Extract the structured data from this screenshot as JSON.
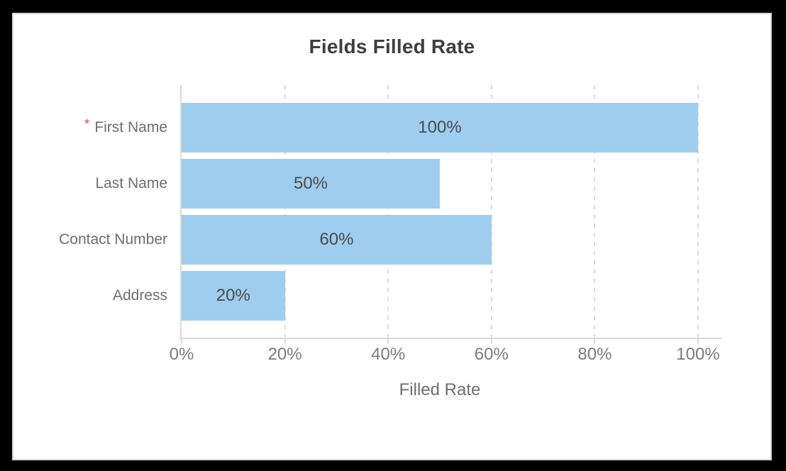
{
  "page": {
    "background_color": "#000000",
    "card_background": "#ffffff"
  },
  "chart_data": {
    "type": "bar",
    "orientation": "horizontal",
    "title": "Fields Filled Rate",
    "xlabel": "Filled Rate",
    "ylabel": "",
    "categories": [
      "First Name",
      "Last Name",
      "Contact Number",
      "Address"
    ],
    "required_fields": [
      true,
      false,
      false,
      false
    ],
    "required_marker": "*",
    "required_marker_color": "#E0524B",
    "values": [
      100,
      50,
      60,
      20
    ],
    "value_labels": [
      "100%",
      "50%",
      "60%",
      "20%"
    ],
    "x_ticks": [
      "0%",
      "20%",
      "40%",
      "60%",
      "80%",
      "100%"
    ],
    "xlim": [
      0,
      100
    ],
    "grid": "vertical dashed",
    "legend_position": "none",
    "bar_color": "#9FCDEF",
    "axis_color": "#d9d9d9",
    "gridline_color": "#dcdcdc"
  }
}
